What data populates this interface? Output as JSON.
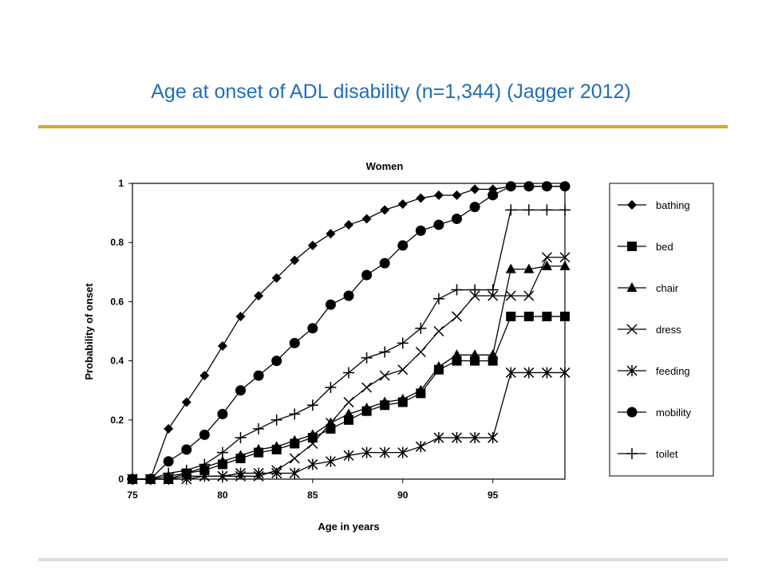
{
  "slide": {
    "title": "Age at onset of ADL disability (n=1,344) (Jagger 2012)"
  },
  "colors": {
    "title": "#1f6fb8",
    "top_rule": "#d4aa2a",
    "bottom_rule": "#dcdcdc",
    "series": "#000000"
  },
  "chart_data": {
    "type": "line",
    "title": "Women",
    "xlabel": "Age in years",
    "ylabel": "Probability of onset",
    "xlim": [
      75,
      99
    ],
    "ylim": [
      0,
      1
    ],
    "x_ticks": [
      "75",
      "80",
      "85",
      "90",
      "95"
    ],
    "y_ticks": [
      "0",
      "0.2",
      "0.4",
      "0.6",
      "0.8",
      "1"
    ],
    "grid": false,
    "legend_position": "right",
    "x": [
      75,
      76,
      77,
      78,
      79,
      80,
      81,
      82,
      83,
      84,
      85,
      86,
      87,
      88,
      89,
      90,
      91,
      92,
      93,
      94,
      95,
      96,
      97,
      98,
      99
    ],
    "series": [
      {
        "name": "bathing",
        "marker": "diamond",
        "values": [
          0,
          0,
          0.17,
          0.26,
          0.35,
          0.45,
          0.55,
          0.62,
          0.68,
          0.74,
          0.79,
          0.83,
          0.86,
          0.88,
          0.91,
          0.93,
          0.95,
          0.96,
          0.96,
          0.98,
          0.98,
          0.99,
          0.99,
          0.99,
          0.99
        ]
      },
      {
        "name": "bed",
        "marker": "square",
        "values": [
          0,
          0,
          0,
          0.02,
          0.03,
          0.05,
          0.07,
          0.09,
          0.1,
          0.12,
          0.14,
          0.17,
          0.2,
          0.23,
          0.25,
          0.26,
          0.29,
          0.37,
          0.4,
          0.4,
          0.4,
          0.55,
          0.55,
          0.55,
          0.55
        ]
      },
      {
        "name": "chair",
        "marker": "triangle",
        "values": [
          0,
          0,
          0.01,
          0.02,
          0.04,
          0.06,
          0.08,
          0.1,
          0.11,
          0.13,
          0.15,
          0.19,
          0.22,
          0.24,
          0.26,
          0.27,
          0.3,
          0.38,
          0.42,
          0.42,
          0.42,
          0.71,
          0.71,
          0.72,
          0.72
        ]
      },
      {
        "name": "dress",
        "marker": "x",
        "values": [
          0,
          0,
          0,
          0.01,
          0.01,
          0.01,
          0.01,
          0.01,
          0.03,
          0.07,
          0.12,
          0.19,
          0.26,
          0.31,
          0.35,
          0.37,
          0.43,
          0.5,
          0.55,
          0.62,
          0.62,
          0.62,
          0.62,
          0.75,
          0.75
        ]
      },
      {
        "name": "feeding",
        "marker": "asterisk",
        "values": [
          0,
          0,
          0,
          0,
          0.01,
          0.01,
          0.02,
          0.02,
          0.02,
          0.02,
          0.05,
          0.06,
          0.08,
          0.09,
          0.09,
          0.09,
          0.11,
          0.14,
          0.14,
          0.14,
          0.14,
          0.36,
          0.36,
          0.36,
          0.36
        ]
      },
      {
        "name": "mobility",
        "marker": "circle",
        "values": [
          0,
          0,
          0.06,
          0.1,
          0.15,
          0.22,
          0.3,
          0.35,
          0.4,
          0.46,
          0.51,
          0.59,
          0.62,
          0.69,
          0.73,
          0.79,
          0.84,
          0.86,
          0.88,
          0.92,
          0.96,
          0.99,
          0.99,
          0.99,
          0.99
        ]
      },
      {
        "name": "toilet",
        "marker": "plus",
        "values": [
          0,
          0,
          0.02,
          0.03,
          0.05,
          0.09,
          0.14,
          0.17,
          0.2,
          0.22,
          0.25,
          0.31,
          0.36,
          0.41,
          0.43,
          0.46,
          0.51,
          0.61,
          0.64,
          0.64,
          0.64,
          0.91,
          0.91,
          0.91,
          0.91
        ]
      }
    ]
  }
}
